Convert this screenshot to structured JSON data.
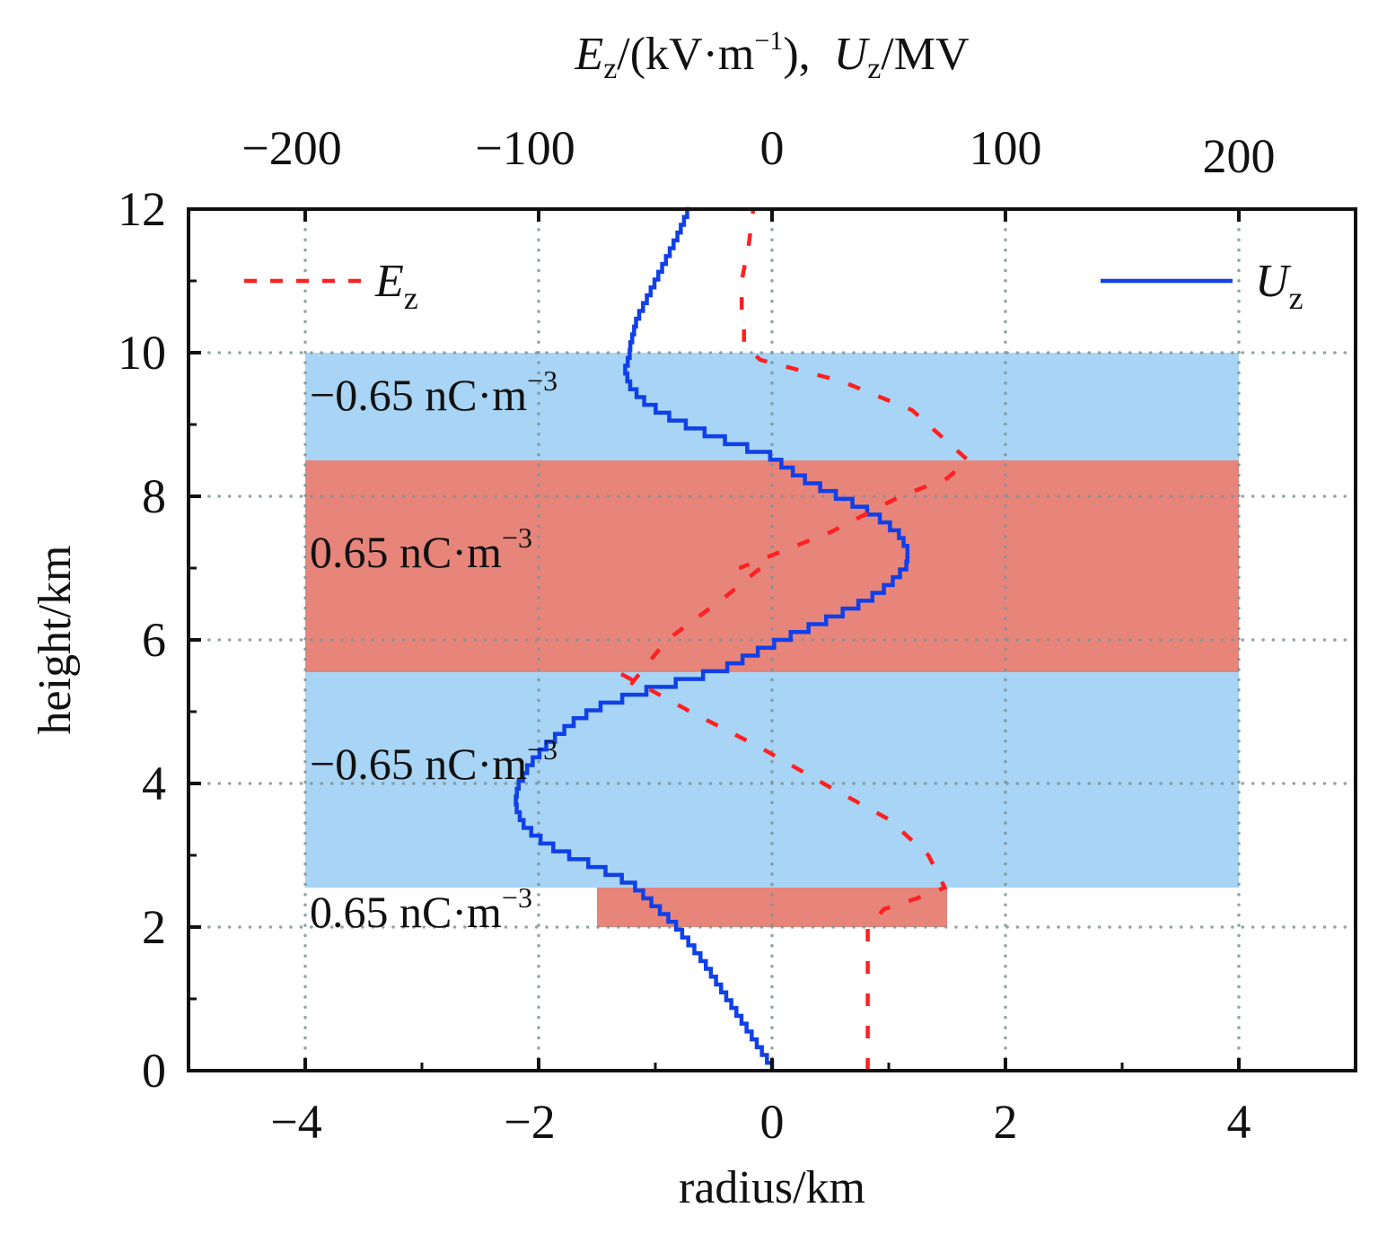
{
  "chart_data": {
    "type": "line",
    "title": "",
    "xlabel": "radius/km",
    "ylabel": "height/km",
    "top_xlabel": {
      "E": "E",
      "sub1": "z",
      "mid": "/(kV·m",
      "sup": "−1",
      "close": "),  ",
      "U": "U",
      "sub2": "z",
      "end": "/MV"
    },
    "xlim": [
      -5,
      5
    ],
    "ylim": [
      0,
      12
    ],
    "top_xlim": [
      -250,
      250
    ],
    "x_ticks": [
      -4,
      -2,
      0,
      2,
      4
    ],
    "x_tick_labels": [
      "−4",
      "−2",
      "0",
      "2",
      "4"
    ],
    "x_minor_ticks": [
      -3,
      -1,
      1,
      3
    ],
    "y_ticks": [
      0,
      2,
      4,
      6,
      8,
      10,
      12
    ],
    "y_tick_labels": [
      "0",
      "2",
      "4",
      "6",
      "8",
      "10",
      "12"
    ],
    "y_minor_ticks": [
      1,
      3,
      5,
      7,
      9,
      11
    ],
    "top_ticks": [
      -200,
      -100,
      0,
      100,
      200
    ],
    "top_tick_labels": [
      "−200",
      "−100",
      "0",
      "100",
      "200"
    ],
    "grid": true,
    "grid_color": "#7f9497",
    "legend": [
      {
        "name": "E",
        "sub": "z",
        "style": "dashed",
        "color": "#ff2020",
        "placement": "top-left"
      },
      {
        "name": "U",
        "sub": "z",
        "style": "solid",
        "color": "#1040e8",
        "placement": "top-right"
      }
    ],
    "charge_regions": [
      {
        "label": "−0.65 nC·m",
        "sup": "−3",
        "density": -0.65,
        "unit": "nC·m^-3",
        "z_range": [
          5.55,
          10.0
        ],
        "r_range": [
          -4,
          4
        ],
        "color": "#a8d4f5"
      },
      {
        "label": "0.65 nC·m",
        "sup": "−3",
        "density": 0.65,
        "unit": "nC·m^-3",
        "z_range": [
          5.55,
          8.5
        ],
        "r_range": [
          -4,
          4
        ],
        "color": "#e8857b"
      },
      {
        "label": "−0.65 nC·m",
        "sup": "−3",
        "density": -0.65,
        "unit": "nC·m^-3",
        "z_range": [
          2.55,
          5.55
        ],
        "r_range": [
          -4,
          4
        ],
        "color": "#a8d4f5"
      },
      {
        "label": "0.65 nC·m",
        "sup": "−3",
        "density": 0.65,
        "unit": "nC·m^-3",
        "z_range": [
          2.0,
          2.55
        ],
        "r_range": [
          -1.5,
          1.5
        ],
        "color": "#e8857b"
      }
    ],
    "series": [
      {
        "name": "Uz",
        "unit": "MV",
        "axis": "top",
        "color": "#1040e8",
        "style": "solid-stepped",
        "points": [
          [
            0,
            0.0
          ],
          [
            0.5,
            -10
          ],
          [
            1.0,
            -20
          ],
          [
            1.5,
            -30
          ],
          [
            2.0,
            -42
          ],
          [
            2.3,
            -52
          ],
          [
            2.55,
            -60
          ],
          [
            2.8,
            -76
          ],
          [
            3.0,
            -91
          ],
          [
            3.2,
            -101
          ],
          [
            3.4,
            -107
          ],
          [
            3.65,
            -110
          ],
          [
            3.9,
            -109
          ],
          [
            4.2,
            -104
          ],
          [
            4.5,
            -96
          ],
          [
            4.8,
            -85
          ],
          [
            5.0,
            -75
          ],
          [
            5.2,
            -58
          ],
          [
            5.4,
            -35
          ],
          [
            5.55,
            -20
          ],
          [
            5.8,
            -5
          ],
          [
            6.0,
            8
          ],
          [
            6.2,
            22
          ],
          [
            6.4,
            35
          ],
          [
            6.6,
            46
          ],
          [
            6.8,
            53
          ],
          [
            7.0,
            58
          ],
          [
            7.2,
            58
          ],
          [
            7.4,
            55
          ],
          [
            7.6,
            48
          ],
          [
            7.8,
            38
          ],
          [
            8.0,
            25
          ],
          [
            8.2,
            13
          ],
          [
            8.4,
            4
          ],
          [
            8.5,
            0
          ],
          [
            8.7,
            -18
          ],
          [
            8.9,
            -34
          ],
          [
            9.1,
            -47
          ],
          [
            9.3,
            -56
          ],
          [
            9.5,
            -61
          ],
          [
            9.7,
            -63
          ],
          [
            9.9,
            -61
          ],
          [
            10.0,
            -61
          ],
          [
            10.4,
            -58
          ],
          [
            10.8,
            -52
          ],
          [
            11.2,
            -46
          ],
          [
            11.6,
            -40
          ],
          [
            12.0,
            -35
          ]
        ]
      },
      {
        "name": "Ez",
        "unit": "kV·m^-1",
        "axis": "top",
        "color": "#ff2020",
        "style": "dashed",
        "points": [
          [
            0,
            41
          ],
          [
            1.0,
            41
          ],
          [
            2.0,
            41
          ],
          [
            2.25,
            48
          ],
          [
            2.4,
            62
          ],
          [
            2.55,
            74
          ],
          [
            3.0,
            67
          ],
          [
            3.5,
            50
          ],
          [
            4.0,
            22
          ],
          [
            4.5,
            -5
          ],
          [
            5.0,
            -35
          ],
          [
            5.55,
            -66
          ],
          [
            5.4,
            -60
          ],
          [
            6.0,
            -45
          ],
          [
            6.6,
            -20
          ],
          [
            7.0,
            -5
          ],
          [
            7.0,
            -14
          ],
          [
            7.5,
            25
          ],
          [
            8.0,
            55
          ],
          [
            8.25,
            75
          ],
          [
            8.5,
            84
          ],
          [
            9.2,
            60
          ],
          [
            9.6,
            30
          ],
          [
            9.9,
            -5
          ],
          [
            10.1,
            -12
          ],
          [
            10.3,
            -12
          ],
          [
            10.5,
            -13
          ],
          [
            11.0,
            -13
          ],
          [
            11.5,
            -10
          ],
          [
            12.0,
            -8
          ]
        ]
      }
    ]
  }
}
